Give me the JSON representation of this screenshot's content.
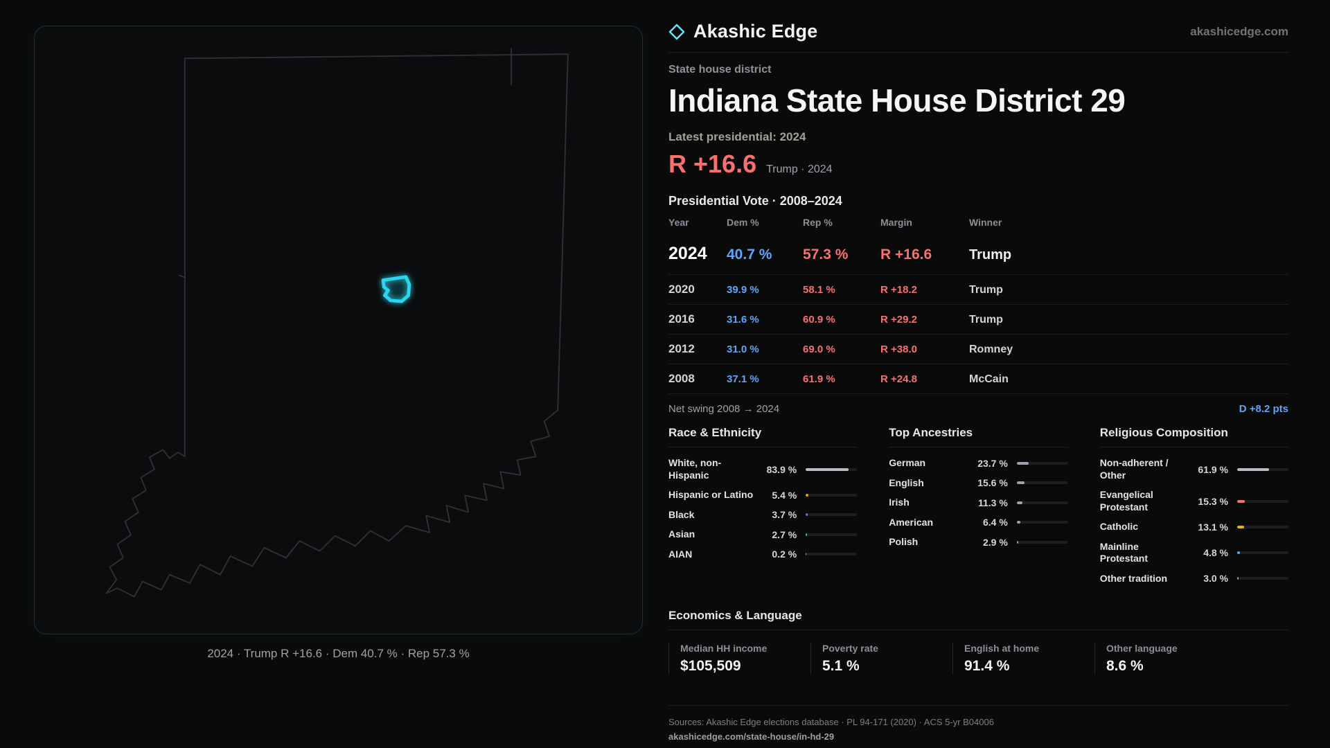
{
  "brand": {
    "name": "Akashic Edge",
    "site": "akashicedge.com"
  },
  "page": {
    "kicker": "State house district",
    "title": "Indiana State House District 29",
    "latest_label": "Latest presidential: 2024",
    "headline_margin": "R +16.6",
    "headline_context": "Trump · 2024"
  },
  "map": {
    "caption": "2024 · Trump R +16.6 · Dem 40.7 % · Rep 57.3 %",
    "region": "Indiana"
  },
  "vote": {
    "title": "Presidential Vote · 2008–2024",
    "col_year": "Year",
    "col_dem": "Dem %",
    "col_rep": "Rep %",
    "col_margin": "Margin",
    "col_winner": "Winner",
    "rows": [
      {
        "year": "2024",
        "dem": "40.7 %",
        "rep": "57.3 %",
        "margin": "R +16.6",
        "winner": "Trump"
      },
      {
        "year": "2020",
        "dem": "39.9 %",
        "rep": "58.1 %",
        "margin": "R +18.2",
        "winner": "Trump"
      },
      {
        "year": "2016",
        "dem": "31.6 %",
        "rep": "60.9 %",
        "margin": "R +29.2",
        "winner": "Trump"
      },
      {
        "year": "2012",
        "dem": "31.0 %",
        "rep": "69.0 %",
        "margin": "R +38.0",
        "winner": "Romney"
      },
      {
        "year": "2008",
        "dem": "37.1 %",
        "rep": "61.9 %",
        "margin": "R +24.8",
        "winner": "McCain"
      }
    ],
    "swing_label": "Net swing 2008 → 2024",
    "swing_value": "D +8.2 pts"
  },
  "race": {
    "title": "Race & Ethnicity",
    "items": [
      {
        "label": "White, non-Hispanic",
        "value": "83.9 %",
        "pct": 83.9,
        "color": "#b8bdc7"
      },
      {
        "label": "Hispanic or Latino",
        "value": "5.4 %",
        "pct": 5.4,
        "color": "#f59e0b"
      },
      {
        "label": "Black",
        "value": "3.7 %",
        "pct": 3.7,
        "color": "#8b5cf6"
      },
      {
        "label": "Asian",
        "value": "2.7 %",
        "pct": 2.7,
        "color": "#34d399"
      },
      {
        "label": "AIAN",
        "value": "0.2 %",
        "pct": 0.2,
        "color": "#9ca3af"
      }
    ]
  },
  "ancestry": {
    "title": "Top Ancestries",
    "items": [
      {
        "label": "German",
        "value": "23.7 %",
        "pct": 23.7,
        "color": "#9ca3af"
      },
      {
        "label": "English",
        "value": "15.6 %",
        "pct": 15.6,
        "color": "#9ca3af"
      },
      {
        "label": "Irish",
        "value": "11.3 %",
        "pct": 11.3,
        "color": "#9ca3af"
      },
      {
        "label": "American",
        "value": "6.4 %",
        "pct": 6.4,
        "color": "#9ca3af"
      },
      {
        "label": "Polish",
        "value": "2.9 %",
        "pct": 2.9,
        "color": "#9ca3af"
      }
    ]
  },
  "religion": {
    "title": "Religious Composition",
    "items": [
      {
        "label": "Non-adherent / Other",
        "value": "61.9 %",
        "pct": 61.9,
        "color": "#b8bdc7"
      },
      {
        "label": "Evangelical Protestant",
        "value": "15.3 %",
        "pct": 15.3,
        "color": "#f87171"
      },
      {
        "label": "Catholic",
        "value": "13.1 %",
        "pct": 13.1,
        "color": "#eab308"
      },
      {
        "label": "Mainline Protestant",
        "value": "4.8 %",
        "pct": 4.8,
        "color": "#60a5fa"
      },
      {
        "label": "Other tradition",
        "value": "3.0 %",
        "pct": 3.0,
        "color": "#9ca3af"
      }
    ]
  },
  "economics": {
    "title": "Economics & Language",
    "stats": [
      {
        "label": "Median HH income",
        "value": "$105,509"
      },
      {
        "label": "Poverty rate",
        "value": "5.1 %"
      },
      {
        "label": "English at home",
        "value": "91.4 %"
      },
      {
        "label": "Other language",
        "value": "8.6 %"
      }
    ]
  },
  "footer": {
    "sources": "Sources: Akashic Edge elections database · PL 94-171 (2020) · ACS 5-yr B04006",
    "permalink": "akashicedge.com/state-house/in-hd-29"
  },
  "colors": {
    "accent": "#22d3ee",
    "dem_blue": "#60a5fa",
    "rep_red": "#f87171"
  },
  "chart_data": [
    {
      "type": "table",
      "title": "Presidential Vote · 2008–2024",
      "columns": [
        "Year",
        "Dem %",
        "Rep %",
        "Margin",
        "Winner"
      ],
      "rows": [
        [
          2024,
          40.7,
          57.3,
          "R +16.6",
          "Trump"
        ],
        [
          2020,
          39.9,
          58.1,
          "R +18.2",
          "Trump"
        ],
        [
          2016,
          31.6,
          60.9,
          "R +29.2",
          "Trump"
        ],
        [
          2012,
          31.0,
          69.0,
          "R +38.0",
          "Romney"
        ],
        [
          2008,
          37.1,
          61.9,
          "R +24.8",
          "McCain"
        ]
      ],
      "note": "Net swing 2008 → 2024: D +8.2 pts"
    },
    {
      "type": "bar",
      "title": "Race & Ethnicity",
      "categories": [
        "White, non-Hispanic",
        "Hispanic or Latino",
        "Black",
        "Asian",
        "AIAN"
      ],
      "values": [
        83.9,
        5.4,
        3.7,
        2.7,
        0.2
      ],
      "unit": "%",
      "xlim": [
        0,
        100
      ]
    },
    {
      "type": "bar",
      "title": "Top Ancestries",
      "categories": [
        "German",
        "English",
        "Irish",
        "American",
        "Polish"
      ],
      "values": [
        23.7,
        15.6,
        11.3,
        6.4,
        2.9
      ],
      "unit": "%",
      "xlim": [
        0,
        100
      ]
    },
    {
      "type": "bar",
      "title": "Religious Composition",
      "categories": [
        "Non-adherent / Other",
        "Evangelical Protestant",
        "Catholic",
        "Mainline Protestant",
        "Other tradition"
      ],
      "values": [
        61.9,
        15.3,
        13.1,
        4.8,
        3.0
      ],
      "unit": "%",
      "xlim": [
        0,
        100
      ]
    },
    {
      "type": "bar",
      "title": "Economics & Language",
      "categories": [
        "Median HH income",
        "Poverty rate",
        "English at home",
        "Other language"
      ],
      "values": [
        105509,
        5.1,
        91.4,
        8.6
      ]
    }
  ]
}
